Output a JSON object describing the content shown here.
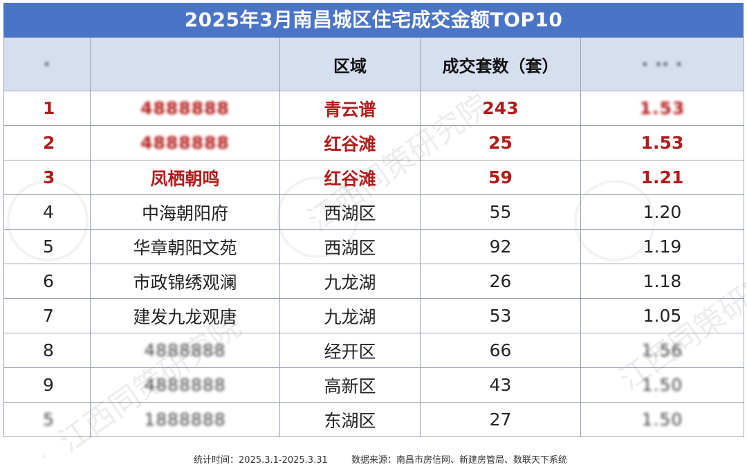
{
  "title": "2025年3月南昌城区住宅成交金额TOP10",
  "headers": {
    "rank": "·",
    "project": "",
    "district": "区域",
    "units": "成交套数（套）",
    "amount": "· ·· ·"
  },
  "rows": [
    {
      "rank": "1",
      "project": "4888888",
      "district": "青云谱",
      "units": "243",
      "amount": "1.53"
    },
    {
      "rank": "2",
      "project": "4888888",
      "district": "红谷滩",
      "units": "25",
      "amount": "1.53"
    },
    {
      "rank": "3",
      "project": "凤栖朝鸣",
      "district": "红谷滩",
      "units": "59",
      "amount": "1.21"
    },
    {
      "rank": "4",
      "project": "中海朝阳府",
      "district": "西湖区",
      "units": "55",
      "amount": "1.20"
    },
    {
      "rank": "5",
      "project": "华章朝阳文苑",
      "district": "西湖区",
      "units": "92",
      "amount": "1.19"
    },
    {
      "rank": "6",
      "project": "市政锦绣观澜",
      "district": "九龙湖",
      "units": "26",
      "amount": "1.18"
    },
    {
      "rank": "7",
      "project": "建发九龙观唐",
      "district": "九龙湖",
      "units": "53",
      "amount": "1.05"
    },
    {
      "rank": "8",
      "project": "4888888",
      "district": "经开区",
      "units": "66",
      "amount": "1.56"
    },
    {
      "rank": "9",
      "project": "4888888",
      "district": "高新区",
      "units": "43",
      "amount": "1.50"
    },
    {
      "rank": "5",
      "project": "1888888",
      "district": "东湖区",
      "units": "27",
      "amount": "1.50"
    }
  ],
  "footer": {
    "mark": "·",
    "stat_time": "统计时间：2025.3.1-2025.3.31",
    "source": "数据来源：南昌市房信网、新建房管局、数联天下系统"
  },
  "watermark": "江西同策研究院",
  "colors": {
    "title_bg": "#4a74c6",
    "header_bg": "#d6dff0",
    "highlight": "#b31b1b"
  }
}
